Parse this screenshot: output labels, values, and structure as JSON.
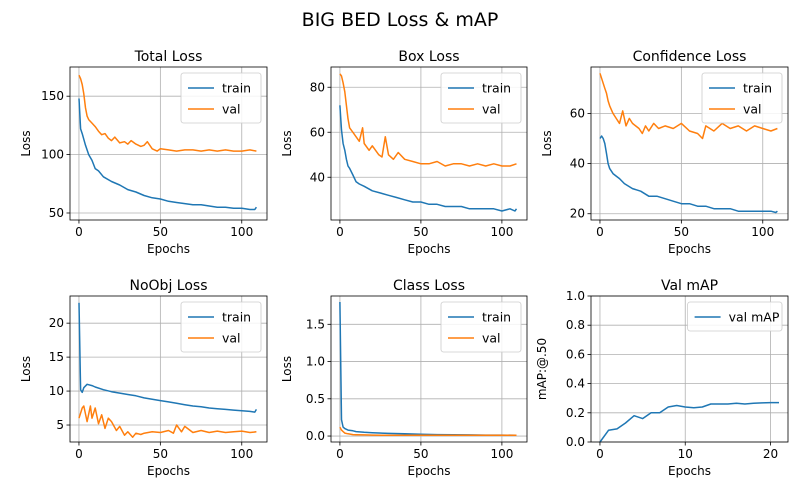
{
  "figure_title": "BIG BED Loss & mAP",
  "colors": {
    "train": "#1f77b4",
    "val": "#ff7f0e",
    "grid": "#b0b0b0"
  },
  "chart_data": [
    {
      "type": "line",
      "title": "Total Loss",
      "xlabel": "Epochs",
      "ylabel": "Loss",
      "xlim": [
        -5.5,
        115.5
      ],
      "ylim": [
        44,
        175
      ],
      "xticks": [
        0,
        50,
        100
      ],
      "yticks": [
        50,
        100,
        150
      ],
      "grid": true,
      "legend_position": "top-right",
      "series": [
        {
          "name": "train",
          "color": "#1f77b4",
          "x": [
            0,
            1,
            2,
            4,
            6,
            8,
            10,
            12,
            15,
            20,
            25,
            30,
            35,
            40,
            45,
            50,
            55,
            60,
            65,
            70,
            75,
            80,
            85,
            90,
            95,
            100,
            105,
            108,
            109
          ],
          "y": [
            148,
            122,
            118,
            108,
            100,
            95,
            88,
            86,
            81,
            77,
            74,
            70,
            68,
            65,
            63,
            62,
            60,
            59,
            58,
            57,
            57,
            56,
            55,
            55,
            54,
            54,
            53,
            53,
            55
          ]
        },
        {
          "name": "val",
          "color": "#ff7f0e",
          "x": [
            0,
            1,
            2,
            3,
            4,
            5,
            6,
            8,
            10,
            12,
            14,
            16,
            18,
            20,
            22,
            25,
            28,
            30,
            32,
            35,
            38,
            40,
            42,
            45,
            48,
            50,
            55,
            60,
            65,
            70,
            75,
            80,
            85,
            90,
            95,
            100,
            105,
            109
          ],
          "y": [
            168,
            165,
            160,
            152,
            140,
            133,
            130,
            127,
            124,
            120,
            117,
            118,
            114,
            112,
            115,
            110,
            111,
            109,
            112,
            109,
            107,
            108,
            111,
            105,
            103,
            105,
            104,
            103,
            104,
            104,
            103,
            104,
            103,
            104,
            103,
            103,
            104,
            103
          ]
        }
      ]
    },
    {
      "type": "line",
      "title": "Box Loss",
      "xlabel": "Epochs",
      "ylabel": "Loss",
      "xlim": [
        -5.5,
        115.5
      ],
      "ylim": [
        21,
        89
      ],
      "xticks": [
        0,
        50,
        100
      ],
      "yticks": [
        40,
        60,
        80
      ],
      "grid": true,
      "legend_position": "top-right",
      "series": [
        {
          "name": "train",
          "color": "#1f77b4",
          "x": [
            0,
            1,
            2,
            3,
            4,
            5,
            6,
            8,
            10,
            12,
            15,
            20,
            25,
            30,
            35,
            40,
            45,
            50,
            55,
            60,
            65,
            70,
            75,
            80,
            85,
            90,
            95,
            100,
            105,
            108,
            109
          ],
          "y": [
            72,
            61,
            55,
            52,
            48,
            45,
            44,
            41,
            38,
            37,
            36,
            34,
            33,
            32,
            31,
            30,
            29,
            29,
            28,
            28,
            27,
            27,
            27,
            26,
            26,
            26,
            26,
            25,
            26,
            25,
            26
          ]
        },
        {
          "name": "val",
          "color": "#ff7f0e",
          "x": [
            0,
            1,
            2,
            3,
            4,
            5,
            6,
            8,
            10,
            12,
            14,
            15,
            18,
            20,
            24,
            26,
            28,
            30,
            33,
            36,
            40,
            45,
            50,
            55,
            60,
            65,
            70,
            75,
            80,
            85,
            90,
            95,
            100,
            105,
            109
          ],
          "y": [
            86,
            85,
            82,
            78,
            72,
            66,
            62,
            60,
            58,
            56,
            62,
            55,
            52,
            54,
            50,
            49,
            58,
            50,
            48,
            51,
            48,
            47,
            46,
            46,
            47,
            45,
            46,
            46,
            45,
            46,
            45,
            46,
            45,
            45,
            46
          ]
        }
      ]
    },
    {
      "type": "line",
      "title": "Confidence Loss",
      "xlabel": "Epochs",
      "ylabel": "Loss",
      "xlim": [
        -5.5,
        115.5
      ],
      "ylim": [
        17.5,
        78.5
      ],
      "xticks": [
        0,
        50,
        100
      ],
      "yticks": [
        20,
        40,
        60
      ],
      "grid": true,
      "legend_position": "top-right",
      "series": [
        {
          "name": "train",
          "color": "#1f77b4",
          "x": [
            0,
            1,
            2,
            3,
            4,
            5,
            6,
            8,
            10,
            12,
            15,
            20,
            25,
            30,
            35,
            40,
            45,
            50,
            55,
            60,
            65,
            70,
            75,
            80,
            85,
            90,
            95,
            100,
            105,
            108,
            109
          ],
          "y": [
            50,
            51,
            50,
            48,
            44,
            40,
            38,
            36,
            35,
            34,
            32,
            30,
            29,
            27,
            27,
            26,
            25,
            24,
            24,
            23,
            23,
            22,
            22,
            22,
            21,
            21,
            21,
            21,
            21,
            20.5,
            21
          ]
        },
        {
          "name": "val",
          "color": "#ff7f0e",
          "x": [
            0,
            1,
            2,
            3,
            4,
            5,
            6,
            8,
            10,
            12,
            14,
            16,
            18,
            20,
            24,
            26,
            28,
            30,
            33,
            36,
            40,
            45,
            50,
            55,
            60,
            63,
            65,
            70,
            75,
            80,
            85,
            90,
            95,
            100,
            105,
            109
          ],
          "y": [
            76,
            74,
            72,
            70,
            68,
            65,
            63,
            60,
            58,
            56,
            61,
            55,
            58,
            56,
            54,
            52,
            55,
            53,
            56,
            54,
            55,
            54,
            56,
            53,
            52,
            50,
            55,
            53,
            56,
            54,
            55,
            53,
            55,
            54,
            53,
            54
          ]
        }
      ]
    },
    {
      "type": "line",
      "title": "NoObj Loss",
      "xlabel": "Epochs",
      "ylabel": "Loss",
      "xlim": [
        -5.5,
        115.5
      ],
      "ylim": [
        2.5,
        24
      ],
      "xticks": [
        0,
        50,
        100
      ],
      "yticks": [
        5,
        10,
        15,
        20
      ],
      "grid": true,
      "legend_position": "top-right",
      "series": [
        {
          "name": "train",
          "color": "#1f77b4",
          "x": [
            0,
            1,
            2,
            3,
            5,
            8,
            10,
            15,
            20,
            25,
            30,
            35,
            40,
            45,
            50,
            55,
            60,
            65,
            70,
            75,
            80,
            85,
            90,
            95,
            100,
            105,
            108,
            109
          ],
          "y": [
            23,
            10.2,
            9.8,
            10.5,
            11,
            10.8,
            10.6,
            10.2,
            9.9,
            9.7,
            9.5,
            9.3,
            9.0,
            8.8,
            8.6,
            8.4,
            8.2,
            8.0,
            7.8,
            7.7,
            7.5,
            7.4,
            7.3,
            7.2,
            7.1,
            7.0,
            6.9,
            7.3
          ]
        },
        {
          "name": "val",
          "color": "#ff7f0e",
          "x": [
            0,
            2,
            3,
            5,
            7,
            8,
            10,
            12,
            14,
            16,
            18,
            20,
            23,
            25,
            28,
            30,
            33,
            35,
            38,
            40,
            45,
            50,
            55,
            58,
            60,
            63,
            65,
            70,
            75,
            80,
            85,
            90,
            95,
            100,
            105,
            109
          ],
          "y": [
            6.0,
            7.5,
            7.8,
            5.5,
            7.8,
            6.0,
            7.5,
            5.2,
            6.5,
            4.5,
            6.0,
            5.5,
            4.2,
            4.8,
            3.5,
            4.0,
            3.2,
            3.8,
            3.6,
            3.8,
            4.0,
            3.9,
            4.2,
            3.8,
            5.0,
            4.0,
            4.8,
            3.9,
            4.2,
            3.9,
            4.1,
            3.9,
            4.0,
            4.1,
            3.9,
            4.0
          ]
        }
      ]
    },
    {
      "type": "line",
      "title": "Class Loss",
      "xlabel": "Epochs",
      "ylabel": "Loss",
      "xlim": [
        -5.5,
        115.5
      ],
      "ylim": [
        -0.08,
        1.88
      ],
      "xticks": [
        0,
        50,
        100
      ],
      "yticks": [
        0.0,
        0.5,
        1.0,
        1.5
      ],
      "ytick_labels": [
        "0.0",
        "0.5",
        "1.0",
        "1.5"
      ],
      "grid": true,
      "legend_position": "top-right",
      "series": [
        {
          "name": "train",
          "color": "#1f77b4",
          "x": [
            0,
            1,
            2,
            3,
            5,
            8,
            10,
            15,
            20,
            30,
            40,
            50,
            60,
            70,
            80,
            90,
            100,
            109
          ],
          "y": [
            1.8,
            0.22,
            0.12,
            0.1,
            0.08,
            0.07,
            0.06,
            0.05,
            0.045,
            0.035,
            0.03,
            0.025,
            0.02,
            0.018,
            0.015,
            0.013,
            0.012,
            0.01
          ]
        },
        {
          "name": "val",
          "color": "#ff7f0e",
          "x": [
            0,
            1,
            2,
            3,
            5,
            8,
            10,
            15,
            20,
            30,
            40,
            50,
            60,
            70,
            80,
            90,
            100,
            109
          ],
          "y": [
            0.12,
            0.08,
            0.06,
            0.04,
            0.03,
            0.02,
            0.018,
            0.015,
            0.012,
            0.01,
            0.01,
            0.01,
            0.01,
            0.01,
            0.01,
            0.01,
            0.01,
            0.01
          ]
        }
      ]
    },
    {
      "type": "line",
      "title": "Val mAP",
      "xlabel": "Epochs",
      "ylabel": "mAP:@.50",
      "xlim": [
        -1.05,
        22.05
      ],
      "ylim": [
        0.0,
        1.0
      ],
      "xticks": [
        0,
        10,
        20
      ],
      "yticks": [
        0.0,
        0.2,
        0.4,
        0.6,
        0.8,
        1.0
      ],
      "ytick_labels": [
        "0.0",
        "0.2",
        "0.4",
        "0.6",
        "0.8",
        "1.0"
      ],
      "grid": true,
      "legend_position": "top-right",
      "series": [
        {
          "name": "val mAP",
          "color": "#1f77b4",
          "x": [
            0,
            1,
            2,
            3,
            4,
            5,
            6,
            7,
            8,
            9,
            10,
            11,
            12,
            13,
            14,
            15,
            16,
            17,
            18,
            19,
            20,
            21
          ],
          "y": [
            0.0,
            0.08,
            0.09,
            0.13,
            0.18,
            0.16,
            0.2,
            0.2,
            0.24,
            0.25,
            0.24,
            0.235,
            0.24,
            0.26,
            0.26,
            0.26,
            0.265,
            0.26,
            0.265,
            0.268,
            0.27,
            0.27
          ]
        }
      ]
    }
  ]
}
